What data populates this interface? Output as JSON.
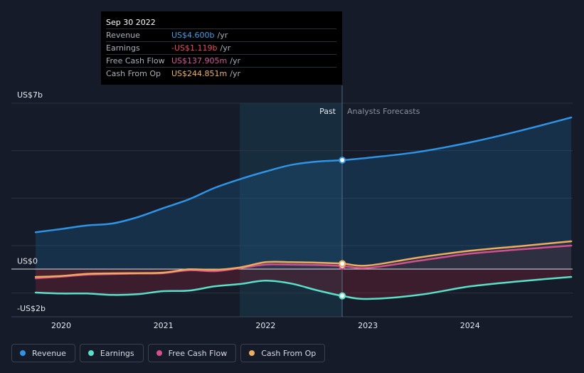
{
  "tooltip": {
    "date": "Sep 30 2022",
    "rows": [
      {
        "label": "Revenue",
        "value": "US$4.600b",
        "unit": "/yr",
        "color": "#3ea0ea"
      },
      {
        "label": "Earnings",
        "value": "-US$1.119b",
        "unit": "/yr",
        "color": "#f0475c"
      },
      {
        "label": "Free Cash Flow",
        "value": "US$137.905m",
        "unit": "/yr",
        "color": "#d9559a"
      },
      {
        "label": "Cash From Op",
        "value": "US$244.851m",
        "unit": "/yr",
        "color": "#f1b262"
      }
    ]
  },
  "legend": [
    {
      "label": "Revenue",
      "color": "#2f94e6"
    },
    {
      "label": "Earnings",
      "color": "#5ae0c8"
    },
    {
      "label": "Free Cash Flow",
      "color": "#d4508c"
    },
    {
      "label": "Cash From Op",
      "color": "#eeac5c"
    }
  ],
  "chart_data": {
    "type": "line",
    "y_tick_labels": [
      "US$7b",
      "US$0",
      "-US$2b"
    ],
    "ylim": [
      -2,
      7
    ],
    "x_tick_labels": [
      "2020",
      "2021",
      "2022",
      "2023",
      "2024"
    ],
    "past_label": "Past",
    "forecast_label": "Analysts Forecasts",
    "divider_x": 2022.75,
    "highlight_start_x": 2021.75,
    "series": [
      {
        "name": "Revenue",
        "color": "#2f94e6",
        "x": [
          2019.75,
          2020.0,
          2020.25,
          2020.5,
          2020.75,
          2021.0,
          2021.25,
          2021.5,
          2021.75,
          2022.0,
          2022.25,
          2022.5,
          2022.75,
          2023.0,
          2023.5,
          2024.0,
          2024.5,
          2024.99
        ],
        "y": [
          1.56,
          1.7,
          1.85,
          1.93,
          2.2,
          2.58,
          2.95,
          3.43,
          3.8,
          4.12,
          4.4,
          4.54,
          4.6,
          4.7,
          4.95,
          5.35,
          5.85,
          6.4
        ]
      },
      {
        "name": "Earnings",
        "color": "#5ae0c8",
        "x": [
          2019.75,
          2020.0,
          2020.25,
          2020.5,
          2020.75,
          2021.0,
          2021.25,
          2021.5,
          2021.75,
          2022.0,
          2022.25,
          2022.5,
          2022.75,
          2023.0,
          2023.5,
          2024.0,
          2024.5,
          2024.99
        ],
        "y": [
          -0.98,
          -1.02,
          -1.02,
          -1.08,
          -1.05,
          -0.92,
          -0.9,
          -0.72,
          -0.62,
          -0.48,
          -0.6,
          -0.88,
          -1.12,
          -1.25,
          -1.08,
          -0.72,
          -0.5,
          -0.32
        ]
      },
      {
        "name": "Free Cash Flow",
        "color": "#d4508c",
        "x": [
          2019.75,
          2020.0,
          2020.25,
          2020.5,
          2020.75,
          2021.0,
          2021.25,
          2021.5,
          2021.75,
          2022.0,
          2022.25,
          2022.5,
          2022.75,
          2023.0,
          2023.5,
          2024.0,
          2024.5,
          2024.99
        ],
        "y": [
          -0.38,
          -0.31,
          -0.23,
          -0.2,
          -0.18,
          -0.16,
          -0.04,
          -0.08,
          0.05,
          0.2,
          0.2,
          0.18,
          0.14,
          0.06,
          0.36,
          0.66,
          0.84,
          1.0
        ]
      },
      {
        "name": "Cash From Op",
        "color": "#eeac5c",
        "x": [
          2019.75,
          2020.0,
          2020.25,
          2020.5,
          2020.75,
          2021.0,
          2021.25,
          2021.5,
          2021.75,
          2022.0,
          2022.25,
          2022.5,
          2022.75,
          2023.0,
          2023.5,
          2024.0,
          2024.5,
          2024.99
        ],
        "y": [
          -0.32,
          -0.28,
          -0.19,
          -0.17,
          -0.16,
          -0.14,
          0.0,
          -0.02,
          0.08,
          0.3,
          0.3,
          0.28,
          0.24,
          0.16,
          0.5,
          0.78,
          0.98,
          1.18
        ]
      }
    ]
  }
}
